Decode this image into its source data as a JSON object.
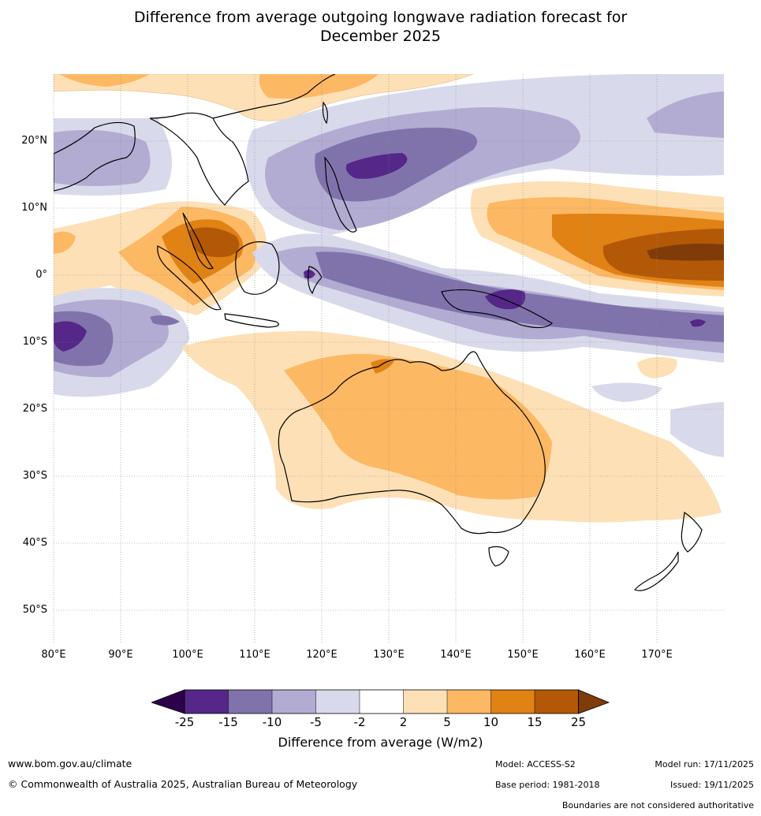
{
  "title": {
    "line1": "Difference from average outgoing longwave radiation forecast for",
    "line2": "December 2025"
  },
  "map": {
    "lat_labels": [
      "20°N",
      "10°N",
      "0°",
      "10°S",
      "20°S",
      "30°S",
      "40°S",
      "50°S"
    ],
    "lon_labels": [
      "80°E",
      "90°E",
      "100°E",
      "110°E",
      "120°E",
      "130°E",
      "140°E",
      "150°E",
      "160°E",
      "170°E"
    ]
  },
  "colorbar": {
    "ticks": [
      "-25",
      "-15",
      "-10",
      "-5",
      "-2",
      "2",
      "5",
      "10",
      "15",
      "25"
    ],
    "colors": {
      "lt_m25": "#2d004b",
      "m25_m15": "#542788",
      "m15_m10": "#8073ac",
      "m10_m5": "#b2abd2",
      "m5_m2": "#d8daeb",
      "m2_2": "#ffffff",
      "p2_5": "#fee0b6",
      "p5_10": "#fdb863",
      "p10_15": "#e08214",
      "p15_25": "#b35806",
      "gt_25": "#7f3b08"
    },
    "label": "Difference from average (W/m2)"
  },
  "footer": {
    "website": "www.bom.gov.au/climate",
    "copyright": "© Commonwealth of Australia 2025, Australian Bureau of Meteorology",
    "model": "Model: ACCESS-S2",
    "base_period": "Base period: 1981-2018",
    "model_run": "Model run: 17/11/2025",
    "issued": "Issued: 19/11/2025",
    "disclaimer": "Boundaries are not considered authoritative"
  }
}
